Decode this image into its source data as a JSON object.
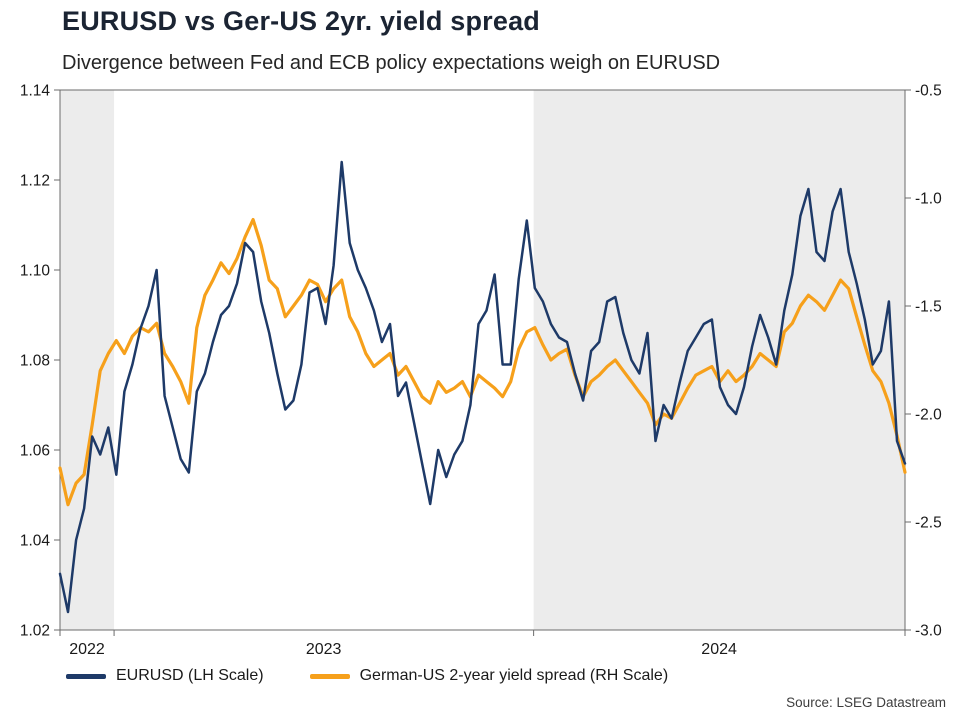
{
  "header": {
    "title": "EURUSD vs Ger-US 2yr. yield spread",
    "subtitle": "Divergence between Fed and ECB policy expectations weigh on EURUSD"
  },
  "source": "Source: LSEG Datastream",
  "chart_data": {
    "type": "line",
    "title": "EURUSD vs Ger-US 2yr. yield spread",
    "subtitle": "Divergence between Fed and ECB policy expectations weigh on EURUSD",
    "x_axis": {
      "unit": "time",
      "labels": [
        {
          "text": "2022",
          "pos": 0.032
        },
        {
          "text": "2023",
          "pos": 0.312
        },
        {
          "text": "2024",
          "pos": 0.78
        }
      ],
      "tick_marks": [
        0,
        0.064,
        0.5605,
        1
      ]
    },
    "axes": {
      "left": {
        "min": 1.02,
        "max": 1.14,
        "tick_labels": [
          "1.14",
          "1.12",
          "1.10",
          "1.08",
          "1.06",
          "1.04",
          "1.02"
        ]
      },
      "right": {
        "min": -3.0,
        "max": -0.5,
        "tick_labels": [
          "-0.5",
          "-1.0",
          "-1.5",
          "-2.0",
          "-2.5",
          "-3.0"
        ]
      }
    },
    "background_bands": {
      "color": "#ececec",
      "ranges": [
        [
          0,
          0.064
        ],
        [
          0.5605,
          1
        ]
      ]
    },
    "legend_position": "bottom-left",
    "grid": false,
    "series": [
      {
        "name": "EURUSD (LH Scale)",
        "axis": "left",
        "color": "#1e3a68",
        "stroke_width": 2.5,
        "values": [
          1.0325,
          1.024,
          1.04,
          1.047,
          1.063,
          1.059,
          1.065,
          1.0545,
          1.073,
          1.079,
          1.087,
          1.092,
          1.1,
          1.072,
          1.065,
          1.058,
          1.055,
          1.073,
          1.077,
          1.084,
          1.09,
          1.092,
          1.097,
          1.106,
          1.104,
          1.093,
          1.086,
          1.077,
          1.069,
          1.071,
          1.079,
          1.095,
          1.096,
          1.088,
          1.101,
          1.124,
          1.106,
          1.1,
          1.096,
          1.091,
          1.084,
          1.088,
          1.072,
          1.075,
          1.066,
          1.057,
          1.048,
          1.06,
          1.054,
          1.059,
          1.062,
          1.07,
          1.088,
          1.091,
          1.099,
          1.079,
          1.079,
          1.098,
          1.111,
          1.096,
          1.093,
          1.088,
          1.085,
          1.084,
          1.077,
          1.071,
          1.082,
          1.084,
          1.093,
          1.094,
          1.086,
          1.08,
          1.077,
          1.086,
          1.062,
          1.07,
          1.067,
          1.075,
          1.082,
          1.085,
          1.088,
          1.089,
          1.074,
          1.07,
          1.068,
          1.074,
          1.083,
          1.09,
          1.085,
          1.079,
          1.091,
          1.099,
          1.112,
          1.118,
          1.104,
          1.102,
          1.113,
          1.118,
          1.104,
          1.097,
          1.089,
          1.079,
          1.082,
          1.093,
          1.062,
          1.057
        ]
      },
      {
        "name": "German-US 2-year yield spread (RH Scale)",
        "axis": "right",
        "color": "#f6a01b",
        "stroke_width": 3.2,
        "values": [
          -2.25,
          -2.42,
          -2.32,
          -2.28,
          -2.05,
          -1.8,
          -1.72,
          -1.66,
          -1.72,
          -1.64,
          -1.6,
          -1.62,
          -1.58,
          -1.72,
          -1.78,
          -1.85,
          -1.95,
          -1.6,
          -1.45,
          -1.38,
          -1.3,
          -1.35,
          -1.28,
          -1.18,
          -1.1,
          -1.22,
          -1.38,
          -1.42,
          -1.55,
          -1.5,
          -1.45,
          -1.38,
          -1.4,
          -1.48,
          -1.42,
          -1.38,
          -1.55,
          -1.62,
          -1.72,
          -1.78,
          -1.75,
          -1.72,
          -1.82,
          -1.78,
          -1.85,
          -1.92,
          -1.95,
          -1.85,
          -1.9,
          -1.88,
          -1.85,
          -1.92,
          -1.82,
          -1.85,
          -1.88,
          -1.92,
          -1.85,
          -1.7,
          -1.62,
          -1.6,
          -1.68,
          -1.75,
          -1.72,
          -1.7,
          -1.82,
          -1.92,
          -1.85,
          -1.82,
          -1.78,
          -1.75,
          -1.8,
          -1.85,
          -1.9,
          -1.95,
          -2.05,
          -2.0,
          -2.02,
          -1.95,
          -1.88,
          -1.82,
          -1.8,
          -1.78,
          -1.85,
          -1.8,
          -1.85,
          -1.82,
          -1.78,
          -1.72,
          -1.75,
          -1.78,
          -1.62,
          -1.58,
          -1.5,
          -1.45,
          -1.48,
          -1.52,
          -1.45,
          -1.38,
          -1.42,
          -1.55,
          -1.68,
          -1.8,
          -1.85,
          -1.95,
          -2.1,
          -2.27
        ]
      }
    ]
  }
}
